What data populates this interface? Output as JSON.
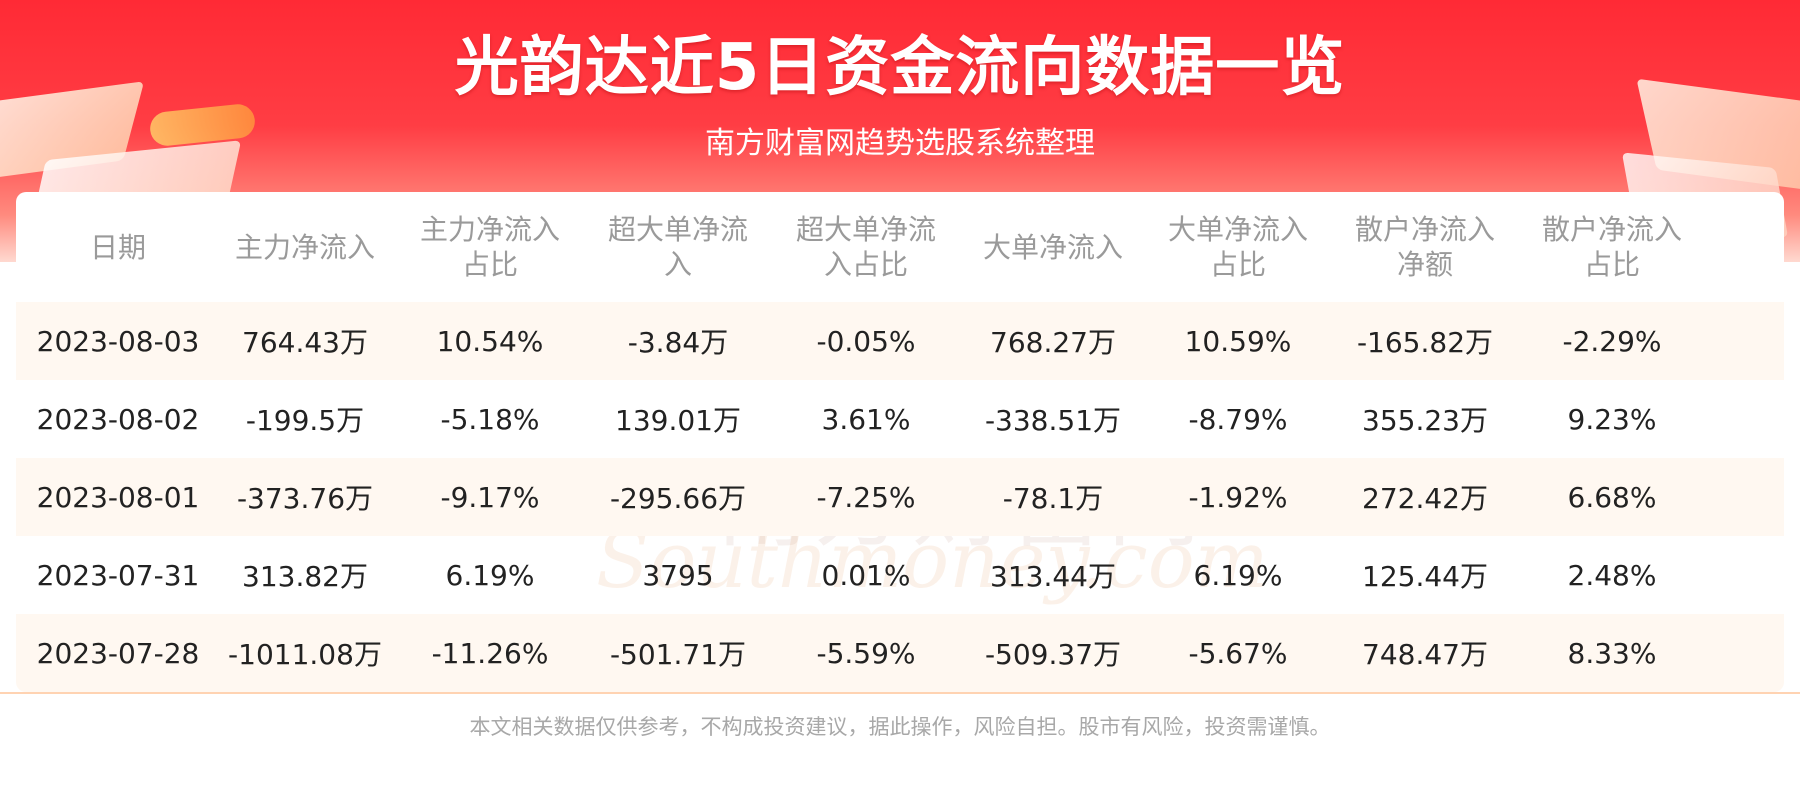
{
  "header": {
    "title": "光韵达近5日资金流向数据一览",
    "subtitle": "南方财富网趋势选股系统整理"
  },
  "table": {
    "columns": [
      [
        "日期"
      ],
      [
        "主力净流入"
      ],
      [
        "主力净流入",
        "占比"
      ],
      [
        "超大单净流",
        "入"
      ],
      [
        "超大单净流",
        "入占比"
      ],
      [
        "大单净流入"
      ],
      [
        "大单净流入",
        "占比"
      ],
      [
        "散户净流入",
        "净额"
      ],
      [
        "散户净流入",
        "占比"
      ]
    ],
    "rows": [
      [
        "2023-08-03",
        "764.43万",
        "10.54%",
        "-3.84万",
        "-0.05%",
        "768.27万",
        "10.59%",
        "-165.82万",
        "-2.29%"
      ],
      [
        "2023-08-02",
        "-199.5万",
        "-5.18%",
        "139.01万",
        "3.61%",
        "-338.51万",
        "-8.79%",
        "355.23万",
        "9.23%"
      ],
      [
        "2023-08-01",
        "-373.76万",
        "-9.17%",
        "-295.66万",
        "-7.25%",
        "-78.1万",
        "-1.92%",
        "272.42万",
        "6.68%"
      ],
      [
        "2023-07-31",
        "313.82万",
        "6.19%",
        "3795",
        "0.01%",
        "313.44万",
        "6.19%",
        "125.44万",
        "2.48%"
      ],
      [
        "2023-07-28",
        "-1011.08万",
        "-11.26%",
        "-501.71万",
        "-5.59%",
        "-509.37万",
        "-5.67%",
        "748.47万",
        "8.33%"
      ]
    ]
  },
  "watermark": {
    "cn": "南方财富网",
    "en": "Southmoney.com"
  },
  "footer": {
    "disclaimer": "本文相关数据仅供参考，不构成投资建议，据此操作，风险自担。股市有风险，投资需谨慎。"
  },
  "colors": {
    "banner_red": "#ff2a35",
    "stripe": "#fff8f1",
    "header_text": "#9a9a9a",
    "cell_text": "#222222"
  }
}
